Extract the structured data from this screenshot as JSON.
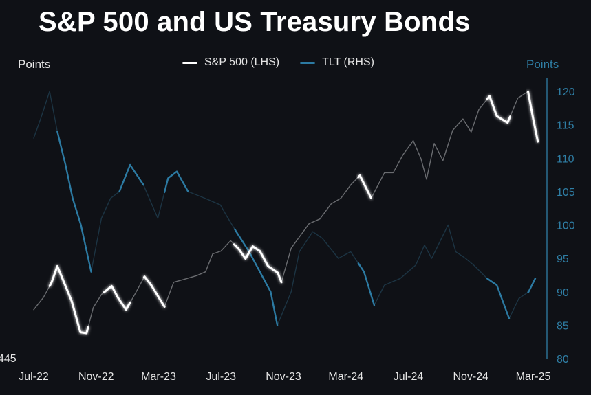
{
  "title": "S&P 500 and US Treasury Bonds",
  "left_axis_title": "Points",
  "right_axis_title": "Points",
  "colors": {
    "background": "#0f1116",
    "spx": "#ffffff",
    "spx_dim": "#6a6c70",
    "tlt": "#2c7aa2",
    "tlt_dim": "#1c3443",
    "right_axis": "#2f7fa6"
  },
  "chart_data": {
    "type": "line",
    "title": "S&P 500 and US Treasury Bonds",
    "legend": [
      "S&P 500 (LHS)",
      "TLT (RHS)"
    ],
    "legend_position": "top-center",
    "x_tick_labels": [
      "Jul-22",
      "Nov-22",
      "Mar-23",
      "Jul-23",
      "Nov-23",
      "Mar-24",
      "Jul-24",
      "Nov-24",
      "Mar-25"
    ],
    "y_left_tick_labels": [
      "445"
    ],
    "y_right_tick_labels": [
      "80",
      "85",
      "90",
      "95",
      "100",
      "105",
      "110",
      "115",
      "120"
    ],
    "y_right_range": [
      80,
      122
    ],
    "grid": false,
    "series": [
      {
        "name": "S&P 500 (LHS)",
        "axis": "left",
        "x": [
          "2022-07-01",
          "2022-07-20",
          "2022-08-05",
          "2022-08-16",
          "2022-09-01",
          "2022-09-13",
          "2022-09-30",
          "2022-10-12",
          "2022-10-25",
          "2022-11-10",
          "2022-11-30",
          "2022-12-13",
          "2022-12-28",
          "2023-01-15",
          "2023-02-02",
          "2023-02-15",
          "2023-03-13",
          "2023-03-31",
          "2023-04-20",
          "2023-05-15",
          "2023-06-01",
          "2023-06-15",
          "2023-07-01",
          "2023-07-20",
          "2023-08-05",
          "2023-08-18",
          "2023-09-01",
          "2023-09-15",
          "2023-10-01",
          "2023-10-20",
          "2023-10-27",
          "2023-11-15",
          "2023-12-01",
          "2023-12-20",
          "2024-01-10",
          "2024-02-01",
          "2024-02-20",
          "2024-03-10",
          "2024-03-28",
          "2024-04-19",
          "2024-05-15",
          "2024-06-01",
          "2024-06-20",
          "2024-07-10",
          "2024-07-25",
          "2024-08-05",
          "2024-08-20",
          "2024-09-06",
          "2024-09-25",
          "2024-10-15",
          "2024-10-31",
          "2024-11-15",
          "2024-12-06",
          "2024-12-20",
          "2025-01-10",
          "2025-01-30",
          "2025-02-19",
          "2025-03-01",
          "2025-03-10"
        ],
        "values": [
          3830,
          3960,
          4120,
          4290,
          4080,
          3920,
          3590,
          3580,
          3850,
          3990,
          4080,
          3950,
          3830,
          4000,
          4180,
          4090,
          3860,
          4120,
          4150,
          4190,
          4230,
          4420,
          4450,
          4560,
          4470,
          4370,
          4500,
          4450,
          4290,
          4220,
          4120,
          4480,
          4600,
          4740,
          4790,
          4950,
          5010,
          5150,
          5250,
          5010,
          5280,
          5280,
          5470,
          5620,
          5430,
          5210,
          5590,
          5410,
          5730,
          5850,
          5710,
          5950,
          6090,
          5880,
          5810,
          6070,
          6140,
          5850,
          5610
        ],
        "highlight_ranges": [
          [
            "2022-08-01",
            "2022-10-15"
          ],
          [
            "2022-11-15",
            "2023-01-05"
          ],
          [
            "2023-02-01",
            "2023-03-13"
          ],
          [
            "2023-07-27",
            "2023-10-27"
          ],
          [
            "2024-03-25",
            "2024-04-19"
          ],
          [
            "2024-12-01",
            "2025-01-15"
          ],
          [
            "2025-02-19",
            "2025-03-10"
          ]
        ]
      },
      {
        "name": "TLT (RHS)",
        "axis": "right",
        "x": [
          "2022-07-01",
          "2022-07-15",
          "2022-08-01",
          "2022-08-16",
          "2022-09-01",
          "2022-09-15",
          "2022-10-01",
          "2022-10-21",
          "2022-11-10",
          "2022-11-28",
          "2022-12-15",
          "2023-01-05",
          "2023-01-31",
          "2023-02-28",
          "2023-03-20",
          "2023-04-06",
          "2023-04-28",
          "2023-05-31",
          "2023-06-30",
          "2023-07-15",
          "2023-07-31",
          "2023-08-25",
          "2023-09-15",
          "2023-10-06",
          "2023-10-19",
          "2023-11-15",
          "2023-12-01",
          "2023-12-27",
          "2024-01-15",
          "2024-02-15",
          "2024-03-10",
          "2024-04-05",
          "2024-04-25",
          "2024-05-15",
          "2024-06-15",
          "2024-07-15",
          "2024-08-01",
          "2024-08-15",
          "2024-09-16",
          "2024-10-01",
          "2024-10-20",
          "2024-11-05",
          "2024-12-01",
          "2024-12-20",
          "2025-01-13",
          "2025-02-01",
          "2025-02-20",
          "2025-03-05"
        ],
        "values": [
          113,
          116,
          120,
          114,
          109,
          104,
          100,
          93,
          101,
          104,
          105,
          109,
          106,
          101,
          107,
          108,
          105,
          104,
          103,
          101,
          99,
          96,
          93,
          90,
          85,
          90,
          96,
          99,
          98,
          95,
          96,
          93,
          88,
          91,
          92,
          94,
          97,
          95,
          100,
          96,
          95,
          94,
          92,
          91,
          86,
          89,
          90,
          92
        ],
        "highlight_ranges": [
          [
            "2022-08-16",
            "2022-10-21"
          ],
          [
            "2022-12-15",
            "2023-01-31"
          ],
          [
            "2023-03-13",
            "2023-04-28"
          ],
          [
            "2023-07-28",
            "2023-10-19"
          ],
          [
            "2024-03-25",
            "2024-04-25"
          ],
          [
            "2024-12-01",
            "2025-01-13"
          ],
          [
            "2025-02-19",
            "2025-03-05"
          ]
        ]
      }
    ]
  }
}
